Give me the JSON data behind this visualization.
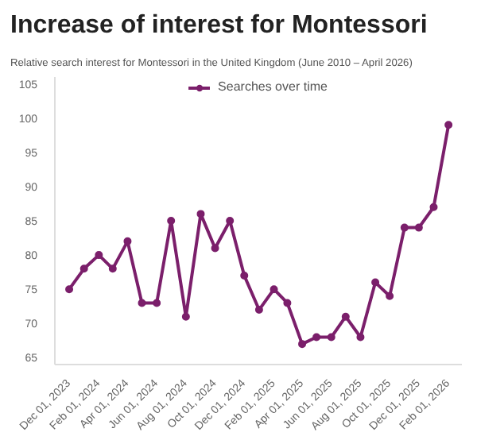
{
  "chart_data": {
    "type": "line",
    "title": "Increase of interest for Montessori",
    "subtitle": "Relative search interest for Montessori in the United Kingdom (June 2010 – April 2026)",
    "x": [
      "2023-12-01",
      "2024-01-01",
      "2024-02-01",
      "2024-03-01",
      "2024-04-01",
      "2024-05-01",
      "2024-06-01",
      "2024-07-01",
      "2024-08-01",
      "2024-09-01",
      "2024-10-01",
      "2024-11-01",
      "2024-12-01",
      "2025-01-01",
      "2025-02-01",
      "2025-03-01",
      "2025-04-01",
      "2025-05-01",
      "2025-06-01",
      "2025-07-01",
      "2025-08-01",
      "2025-09-01",
      "2025-10-01",
      "2025-11-01",
      "2025-12-01",
      "2026-01-01",
      "2026-02-01"
    ],
    "series": [
      {
        "name": "Searches over time",
        "color": "#7b1f6b",
        "values": [
          75,
          78,
          80,
          78,
          82,
          73,
          73,
          85,
          71,
          86,
          81,
          85,
          77,
          72,
          75,
          73,
          67,
          68,
          68,
          71,
          68,
          76,
          74,
          84,
          84,
          87,
          99
        ]
      }
    ],
    "xlim": [
      "2023-11-01",
      "2026-03-01"
    ],
    "xticks": [
      {
        "value": "2023-12-01",
        "label": "Dec 01, 2023"
      },
      {
        "value": "2024-02-01",
        "label": "Feb 01, 2024"
      },
      {
        "value": "2024-04-01",
        "label": "Apr 01, 2024"
      },
      {
        "value": "2024-06-01",
        "label": "Jun 01, 2024"
      },
      {
        "value": "2024-08-01",
        "label": "Aug 01, 2024"
      },
      {
        "value": "2024-10-01",
        "label": "Oct 01, 2024"
      },
      {
        "value": "2024-12-01",
        "label": "Dec 01, 2024"
      },
      {
        "value": "2025-02-01",
        "label": "Feb 01, 2025"
      },
      {
        "value": "2025-04-01",
        "label": "Apr 01, 2025"
      },
      {
        "value": "2025-06-01",
        "label": "Jun 01, 2025"
      },
      {
        "value": "2025-08-01",
        "label": "Aug 01, 2025"
      },
      {
        "value": "2025-10-01",
        "label": "Oct 01, 2025"
      },
      {
        "value": "2025-12-01",
        "label": "Dec 01, 2025"
      },
      {
        "value": "2026-02-01",
        "label": "Feb 01, 2026"
      }
    ],
    "ylim": [
      64,
      106
    ],
    "yticks": [
      65,
      70,
      75,
      80,
      85,
      90,
      95,
      100,
      105
    ],
    "grid": false,
    "legend": "top",
    "marker": "circle",
    "line_style": "solid"
  }
}
